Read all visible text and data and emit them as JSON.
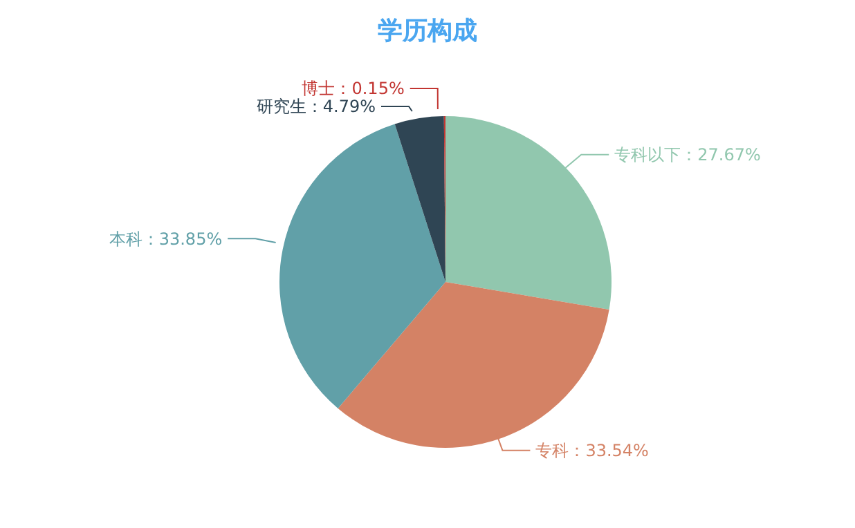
{
  "chart_data": {
    "type": "pie",
    "title": "学历构成",
    "categories": [
      "专科以下",
      "专科",
      "本科",
      "研究生",
      "博士"
    ],
    "values": [
      27.67,
      33.54,
      33.85,
      4.79,
      0.15
    ],
    "colors": [
      "#91c7ae",
      "#d48265",
      "#61a0a8",
      "#2f4554",
      "#c23531"
    ],
    "value_labels": [
      "：27.67%",
      "：33.54%",
      "：33.85%",
      "：4.79%",
      "：0.15%"
    ],
    "legend": false
  }
}
